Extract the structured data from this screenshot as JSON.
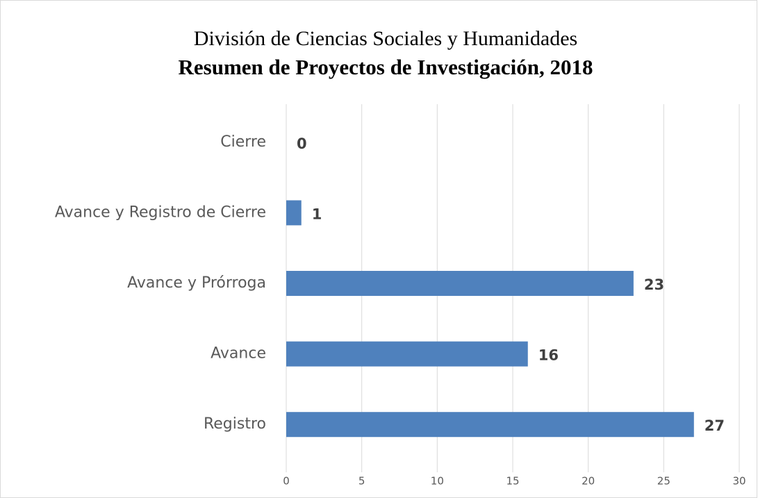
{
  "chart_data": {
    "type": "bar",
    "orientation": "horizontal",
    "title": "División de Ciencias Sociales y Humanidades",
    "subtitle": "Resumen de Proyectos de Investigación, 2018",
    "categories": [
      "Cierre",
      "Avance y Registro de Cierre",
      "Avance y Prórroga",
      "Avance",
      "Registro"
    ],
    "values": [
      0,
      1,
      23,
      16,
      27
    ],
    "color": "#4f81bd",
    "xlim": [
      0,
      30
    ],
    "xticks": [
      0,
      5,
      10,
      15,
      20,
      25,
      30
    ],
    "grid": true
  }
}
